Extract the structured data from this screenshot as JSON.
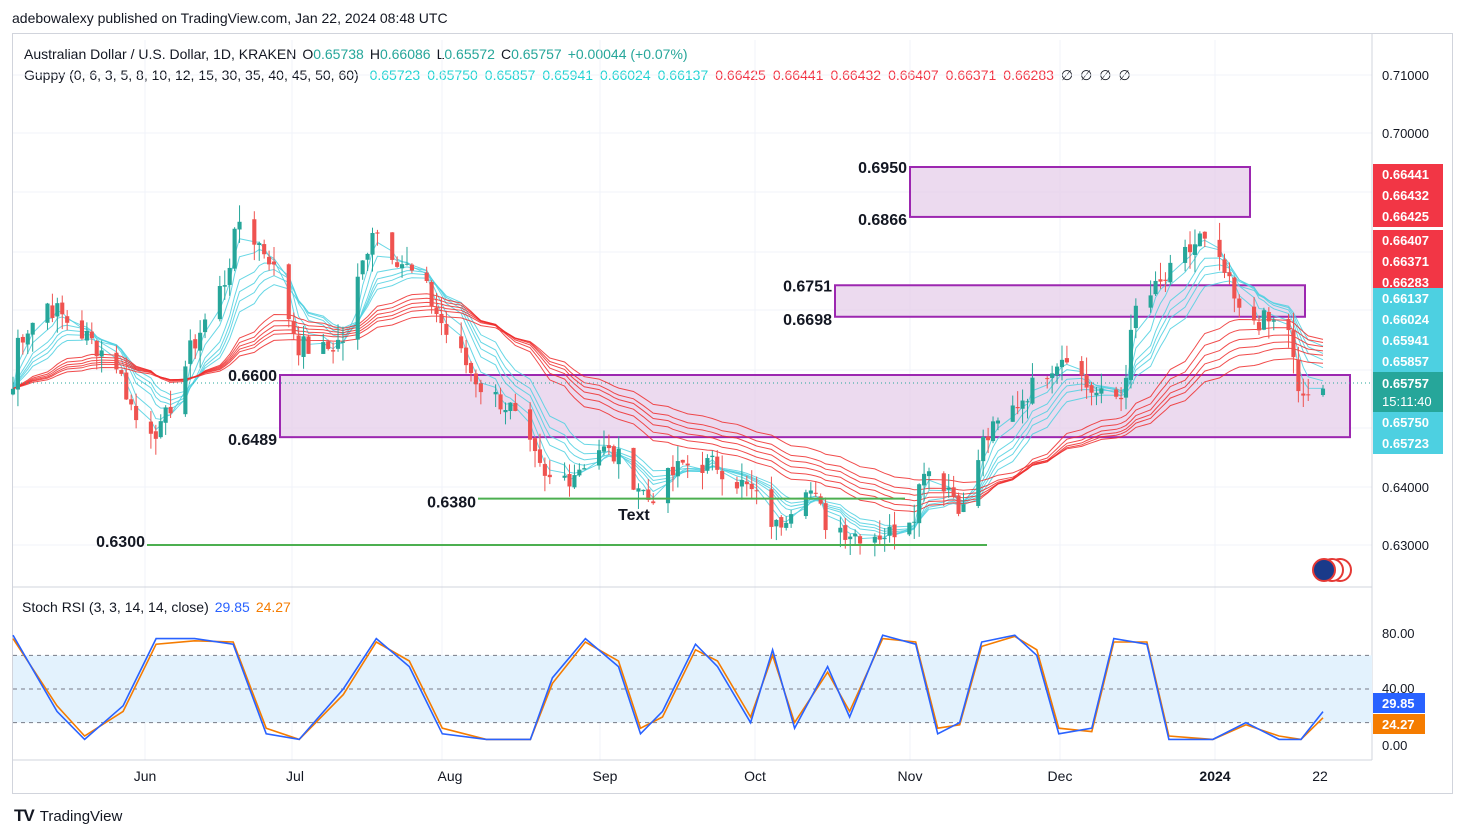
{
  "publisher": "adebowalexy published on TradingView.com, Jan 22, 2024 08:48 UTC",
  "header": {
    "symbol": "Australian Dollar / U.S. Dollar, 1D, KRAKEN",
    "ohlc": [
      {
        "label": "O",
        "value": "0.65738"
      },
      {
        "label": "H",
        "value": "0.66086"
      },
      {
        "label": "L",
        "value": "0.65572"
      },
      {
        "label": "C",
        "value": "0.65757"
      }
    ],
    "change": "+0.00044 (+0.07%)"
  },
  "guppy": {
    "label": "Guppy (0, 6, 3, 5, 8, 10, 12, 15, 30, 35, 40, 45, 50, 60)",
    "fast_values": [
      "0.65723",
      "0.65750",
      "0.65857",
      "0.65941",
      "0.66024",
      "0.66137"
    ],
    "slow_values": [
      "0.66425",
      "0.66441",
      "0.66432",
      "0.66407",
      "0.66371",
      "0.66283"
    ],
    "empty": [
      "∅",
      "∅",
      "∅",
      "∅"
    ]
  },
  "colors": {
    "up": "#26a69a",
    "down": "#ef5350",
    "fast_ema": "#4dd0e1",
    "slow_ema": "#ef2d2d",
    "zone_fill": "#e6cdea",
    "zone_border": "#9c27b0",
    "hline": "#4caf50",
    "stoch_k": "#2962ff",
    "stoch_d": "#f57c00",
    "stoch_band": "#e3f2fd"
  },
  "price_axis": {
    "ticks": [
      "0.71000",
      "0.70000",
      "0.64000",
      "0.63000"
    ]
  },
  "price_badges": {
    "red": [
      "0.66441",
      "0.66432",
      "0.66425",
      "0.66407",
      "0.66371",
      "0.66283"
    ],
    "cyan_top": [
      "0.66137",
      "0.66024",
      "0.65941",
      "0.65857"
    ],
    "last_price": "0.65757",
    "countdown": "15:11:40",
    "cyan_bottom": [
      "0.65750",
      "0.65723"
    ]
  },
  "annotations": {
    "zone_upper": {
      "top_label": "0.6950",
      "bottom_label": "0.6866"
    },
    "zone_middle": {
      "top_label": "0.6751",
      "bottom_label": "0.6698"
    },
    "zone_lower": {
      "top_label": "0.6600",
      "bottom_label": "0.6489"
    },
    "line_0638": "0.6380",
    "line_063": "0.6300",
    "text_note": "Text"
  },
  "stoch": {
    "label": "Stoch RSI (3, 3, 14, 14, close)",
    "k_value": "29.85",
    "d_value": "24.27",
    "axis_ticks": [
      "80.00",
      "40.00",
      "0.00"
    ]
  },
  "time_axis": {
    "labels": [
      "Jun",
      "Jul",
      "Aug",
      "Sep",
      "Oct",
      "Nov",
      "Dec",
      "2024",
      "22"
    ]
  },
  "footer": {
    "brand": "TradingView",
    "logo": "TV"
  },
  "chart_data": {
    "type": "candlestick",
    "symbol": "AUDUSD",
    "timeframe": "1D",
    "y_range": [
      0.626,
      0.712
    ],
    "x_range": [
      "2023-05-01",
      "2024-01-22"
    ],
    "last_close": 0.65757,
    "zones": [
      [
        0.6866,
        0.695
      ],
      [
        0.6698,
        0.6751
      ],
      [
        0.6489,
        0.66
      ]
    ],
    "horizontal_lines": [
      0.638,
      0.63
    ],
    "close_path": [
      [
        "2023-05-02",
        0.666
      ],
      [
        "2023-05-08",
        0.672
      ],
      [
        "2023-05-15",
        0.667
      ],
      [
        "2023-05-22",
        0.662
      ],
      [
        "2023-05-26",
        0.652
      ],
      [
        "2023-05-31",
        0.65
      ],
      [
        "2023-06-06",
        0.664
      ],
      [
        "2023-06-13",
        0.676
      ],
      [
        "2023-06-16",
        0.686
      ],
      [
        "2023-06-22",
        0.68
      ],
      [
        "2023-06-28",
        0.665
      ],
      [
        "2023-07-03",
        0.664
      ],
      [
        "2023-07-07",
        0.666
      ],
      [
        "2023-07-13",
        0.685
      ],
      [
        "2023-07-18",
        0.68
      ],
      [
        "2023-07-24",
        0.674
      ],
      [
        "2023-07-28",
        0.667
      ],
      [
        "2023-08-04",
        0.658
      ],
      [
        "2023-08-10",
        0.654
      ],
      [
        "2023-08-17",
        0.641
      ],
      [
        "2023-08-22",
        0.642
      ],
      [
        "2023-08-28",
        0.647
      ],
      [
        "2023-09-01",
        0.645
      ],
      [
        "2023-09-07",
        0.638
      ],
      [
        "2023-09-14",
        0.644
      ],
      [
        "2023-09-21",
        0.644
      ],
      [
        "2023-09-28",
        0.639
      ],
      [
        "2023-10-03",
        0.633
      ],
      [
        "2023-10-09",
        0.641
      ],
      [
        "2023-10-13",
        0.634
      ],
      [
        "2023-10-19",
        0.632
      ],
      [
        "2023-10-26",
        0.632
      ],
      [
        "2023-10-31",
        0.636
      ],
      [
        "2023-11-02",
        0.644
      ],
      [
        "2023-11-07",
        0.64
      ],
      [
        "2023-11-10",
        0.636
      ],
      [
        "2023-11-14",
        0.648
      ],
      [
        "2023-11-20",
        0.654
      ],
      [
        "2023-11-28",
        0.662
      ],
      [
        "2023-12-01",
        0.664
      ],
      [
        "2023-12-05",
        0.658
      ],
      [
        "2023-12-08",
        0.656
      ],
      [
        "2023-12-12",
        0.656
      ],
      [
        "2023-12-15",
        0.671
      ],
      [
        "2023-12-20",
        0.675
      ],
      [
        "2023-12-28",
        0.683
      ],
      [
        "2024-01-02",
        0.677
      ],
      [
        "2024-01-05",
        0.67
      ],
      [
        "2024-01-10",
        0.669
      ],
      [
        "2024-01-15",
        0.668
      ],
      [
        "2024-01-17",
        0.656
      ],
      [
        "2024-01-22",
        0.65757
      ]
    ],
    "stoch_rsi": {
      "k": [
        [
          0,
          98
        ],
        [
          8,
          30
        ],
        [
          13,
          5
        ],
        [
          20,
          35
        ],
        [
          26,
          95
        ],
        [
          33,
          95
        ],
        [
          40,
          90
        ],
        [
          46,
          10
        ],
        [
          52,
          5
        ],
        [
          60,
          50
        ],
        [
          66,
          95
        ],
        [
          72,
          70
        ],
        [
          78,
          10
        ],
        [
          86,
          5
        ],
        [
          94,
          5
        ],
        [
          98,
          60
        ],
        [
          104,
          95
        ],
        [
          110,
          70
        ],
        [
          114,
          10
        ],
        [
          118,
          30
        ],
        [
          124,
          90
        ],
        [
          128,
          70
        ],
        [
          134,
          20
        ],
        [
          138,
          85
        ],
        [
          142,
          15
        ],
        [
          148,
          70
        ],
        [
          152,
          25
        ],
        [
          158,
          98
        ],
        [
          164,
          90
        ],
        [
          168,
          10
        ],
        [
          172,
          20
        ],
        [
          176,
          92
        ],
        [
          182,
          98
        ],
        [
          186,
          80
        ],
        [
          190,
          10
        ],
        [
          196,
          15
        ],
        [
          200,
          95
        ],
        [
          206,
          90
        ],
        [
          210,
          5
        ],
        [
          218,
          5
        ],
        [
          224,
          20
        ],
        [
          230,
          5
        ],
        [
          234,
          5
        ],
        [
          238,
          29.85
        ]
      ],
      "d": [
        [
          0,
          95
        ],
        [
          8,
          35
        ],
        [
          13,
          8
        ],
        [
          20,
          30
        ],
        [
          26,
          90
        ],
        [
          33,
          93
        ],
        [
          40,
          92
        ],
        [
          46,
          15
        ],
        [
          52,
          5
        ],
        [
          60,
          45
        ],
        [
          66,
          92
        ],
        [
          72,
          75
        ],
        [
          78,
          15
        ],
        [
          86,
          5
        ],
        [
          94,
          5
        ],
        [
          98,
          55
        ],
        [
          104,
          92
        ],
        [
          110,
          75
        ],
        [
          114,
          15
        ],
        [
          118,
          25
        ],
        [
          124,
          85
        ],
        [
          128,
          75
        ],
        [
          134,
          25
        ],
        [
          138,
          80
        ],
        [
          142,
          20
        ],
        [
          148,
          65
        ],
        [
          152,
          30
        ],
        [
          158,
          95
        ],
        [
          164,
          92
        ],
        [
          168,
          15
        ],
        [
          172,
          18
        ],
        [
          176,
          88
        ],
        [
          182,
          97
        ],
        [
          186,
          85
        ],
        [
          190,
          15
        ],
        [
          196,
          12
        ],
        [
          200,
          92
        ],
        [
          206,
          92
        ],
        [
          210,
          8
        ],
        [
          218,
          5
        ],
        [
          224,
          18
        ],
        [
          230,
          8
        ],
        [
          234,
          5
        ],
        [
          238,
          24.27
        ]
      ],
      "bands": [
        80,
        50,
        20
      ]
    }
  }
}
